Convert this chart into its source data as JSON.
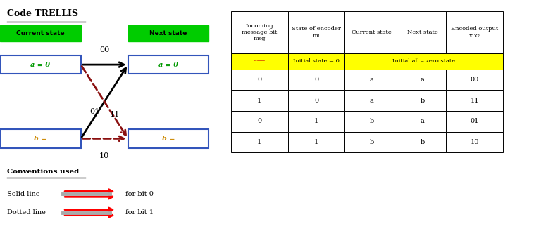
{
  "title": "Code TRELLIS",
  "current_state_label": "Current state",
  "next_state_label": "Next state",
  "state_a_label": "a = 0",
  "state_b_label": "b =",
  "table_headers": [
    "Incoming\nmessage bit\nmsg",
    "State of encoder\nm₁",
    "Current state",
    "Next state",
    "Encoded output\nx₁x₂"
  ],
  "yellow_row_col0": "------",
  "yellow_row_col1": "Initial state = 0",
  "yellow_row_merged": "Initial all – zero state",
  "table_rows": [
    [
      "0",
      "0",
      "a",
      "a",
      "00"
    ],
    [
      "1",
      "0",
      "a",
      "b",
      "11"
    ],
    [
      "0",
      "1",
      "b",
      "a",
      "01"
    ],
    [
      "1",
      "1",
      "b",
      "b",
      "10"
    ]
  ],
  "conventions_title": "Conventions used",
  "conv_line1": "Solid line",
  "conv_line2": "Dotted line",
  "conv_label1": "for bit 0",
  "conv_label2": "for bit 1",
  "arrow_label_aa": "00",
  "arrow_label_ab": "11",
  "arrow_label_ba": "01",
  "arrow_label_bb": "10",
  "green_color": "#00cc00",
  "state_a_color": "#009900",
  "state_b_color": "#cc8800",
  "box_edge_color": "#3355bb",
  "dashed_color": "#8B1010"
}
